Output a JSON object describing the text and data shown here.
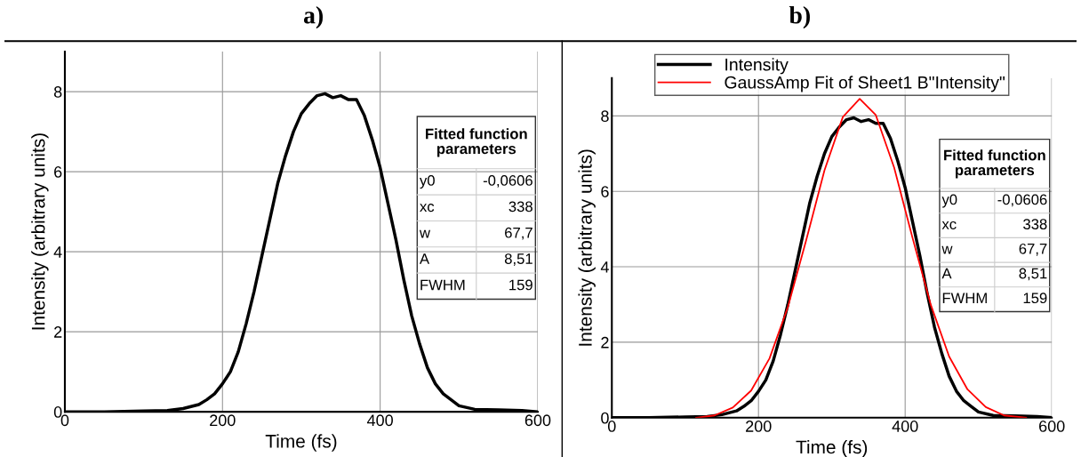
{
  "chart_data": [
    {
      "type": "line",
      "title": "a)",
      "xlabel": "Time (fs)",
      "ylabel": "Intensity (arbitrary units)",
      "xlim": [
        0,
        600
      ],
      "ylim": [
        0,
        9
      ],
      "xticks": [
        0,
        200,
        400,
        600
      ],
      "yticks": [
        0,
        2,
        4,
        6,
        8
      ],
      "grid": true,
      "legend": false,
      "series": [
        {
          "color": "#000000",
          "x": [
            0,
            50,
            100,
            130,
            150,
            170,
            180,
            190,
            200,
            210,
            220,
            230,
            240,
            250,
            260,
            270,
            280,
            290,
            300,
            310,
            320,
            330,
            340,
            350,
            360,
            370,
            380,
            390,
            400,
            410,
            420,
            430,
            440,
            450,
            460,
            470,
            480,
            490,
            500,
            520,
            550,
            580,
            600
          ],
          "values": [
            0,
            0,
            0.02,
            0.03,
            0.08,
            0.18,
            0.3,
            0.45,
            0.7,
            1.0,
            1.5,
            2.2,
            3.0,
            3.9,
            4.8,
            5.7,
            6.4,
            7.0,
            7.45,
            7.7,
            7.9,
            7.95,
            7.85,
            7.9,
            7.8,
            7.8,
            7.4,
            6.8,
            6.1,
            5.2,
            4.3,
            3.3,
            2.4,
            1.7,
            1.1,
            0.7,
            0.45,
            0.3,
            0.15,
            0.06,
            0.05,
            0.03,
            0
          ]
        }
      ],
      "annotations": [
        "Fitted function parameters",
        "y0",
        "-0,0606",
        "xc",
        "338",
        "w",
        "67,7",
        "A",
        "8,51",
        "FWHM",
        "159"
      ]
    },
    {
      "type": "line",
      "title": "b)",
      "xlabel": "Time (fs)",
      "ylabel": "Intensity (arbitrary units)",
      "xlim": [
        0,
        600
      ],
      "ylim": [
        0,
        9
      ],
      "xticks": [
        0,
        200,
        400,
        600
      ],
      "yticks": [
        0,
        2,
        4,
        6,
        8
      ],
      "grid": true,
      "legend": "top",
      "series": [
        {
          "name": "Intensity",
          "color": "#000000",
          "x": [
            0,
            50,
            100,
            130,
            150,
            170,
            180,
            190,
            200,
            210,
            220,
            230,
            240,
            250,
            260,
            270,
            280,
            290,
            300,
            310,
            320,
            330,
            340,
            350,
            360,
            370,
            380,
            390,
            400,
            410,
            420,
            430,
            440,
            450,
            460,
            470,
            480,
            490,
            500,
            520,
            550,
            580,
            600
          ],
          "values": [
            0,
            0,
            0.02,
            0.03,
            0.08,
            0.18,
            0.3,
            0.45,
            0.7,
            1.0,
            1.5,
            2.2,
            3.0,
            3.9,
            4.8,
            5.7,
            6.4,
            7.0,
            7.45,
            7.7,
            7.9,
            7.95,
            7.85,
            7.9,
            7.8,
            7.8,
            7.4,
            6.8,
            6.1,
            5.2,
            4.3,
            3.3,
            2.4,
            1.7,
            1.1,
            0.7,
            0.45,
            0.3,
            0.15,
            0.06,
            0.05,
            0.03,
            0
          ]
        },
        {
          "name": "GaussAmp Fit of Sheet1 B\"Intensity\"",
          "color": "#ff0000",
          "x": [
            115,
            140,
            165,
            190,
            215,
            240,
            265,
            290,
            315,
            338,
            360,
            385,
            410,
            435,
            460,
            485,
            510,
            535,
            565
          ],
          "values": [
            0,
            0.06,
            0.27,
            0.72,
            1.57,
            2.93,
            4.7,
            6.56,
            7.97,
            8.45,
            8.02,
            6.63,
            4.77,
            2.99,
            1.62,
            0.75,
            0.28,
            0.06,
            0
          ]
        }
      ],
      "annotations": [
        "Fitted function parameters",
        "y0",
        "-0,0606",
        "xc",
        "338",
        "w",
        "67,7",
        "A",
        "8,51",
        "FWHM",
        "159"
      ]
    }
  ]
}
